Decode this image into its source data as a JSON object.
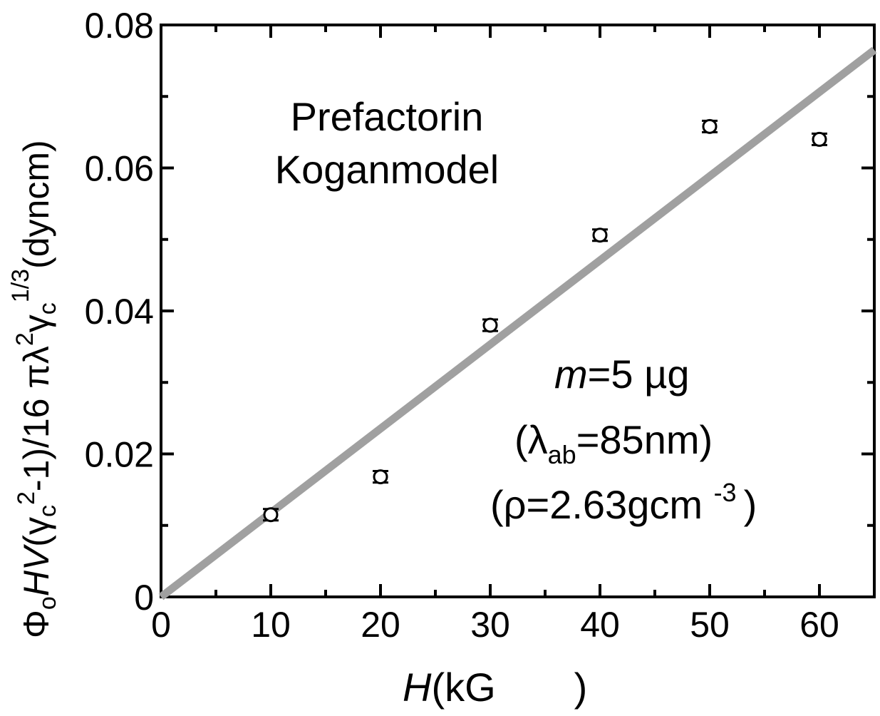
{
  "chart_data": {
    "type": "scatter",
    "title": "",
    "xlabel": "H(kG )",
    "ylabel": "ΦoHV(γc²-1)/16 πλ²γc^1/3(dyncm)",
    "xlim": [
      0,
      65
    ],
    "ylim": [
      0,
      0.08
    ],
    "xticks": [
      0,
      10,
      20,
      30,
      40,
      50,
      60
    ],
    "xtick_labels": [
      "0",
      "10",
      "20",
      "30",
      "40",
      "50",
      "60"
    ],
    "yticks": [
      0,
      0.02,
      0.04,
      0.06,
      0.08
    ],
    "ytick_labels": [
      "0",
      "0.02",
      "0.04",
      "0.06",
      "0.08"
    ],
    "grid": false,
    "series": [
      {
        "marker": "open-circle",
        "color": "#000000",
        "x": [
          10,
          20,
          30,
          40,
          50,
          60
        ],
        "y": [
          0.0115,
          0.0168,
          0.038,
          0.0506,
          0.0658,
          0.064
        ],
        "yerr": [
          0.0008,
          0.0008,
          0.0008,
          0.0008,
          0.0008,
          0.0008
        ]
      },
      {
        "marker": "line",
        "color": "#a0a0a0",
        "x": [
          0,
          65
        ],
        "y": [
          0,
          0.0765
        ]
      }
    ],
    "annotations": {
      "model_line1": "Prefactorin",
      "model_line2": "Koganmodel",
      "mass_m": "m",
      "mass_rest": "=5   µg",
      "lambda_open": "(λ",
      "lambda_sub": "ab",
      "lambda_rest": "=85nm)",
      "rho_main": "(ρ=2.63gcm ",
      "rho_sup": "-3",
      "rho_close": ")"
    },
    "axis_label_parts": {
      "x_italic": "H",
      "x_rest": "(kG",
      "x_close": ")",
      "y_phi": "Φ",
      "y_o": "o",
      "y_hv": "HV",
      "y_open": "(γ",
      "y_c1": "c",
      "y_sq1": "2",
      "y_mid": "-1)/16  πλ",
      "y_sq2": "2",
      "y_gamma": "γ",
      "y_c2": "c",
      "y_exp": "1/3",
      "y_unit": "(dyncm)"
    }
  }
}
